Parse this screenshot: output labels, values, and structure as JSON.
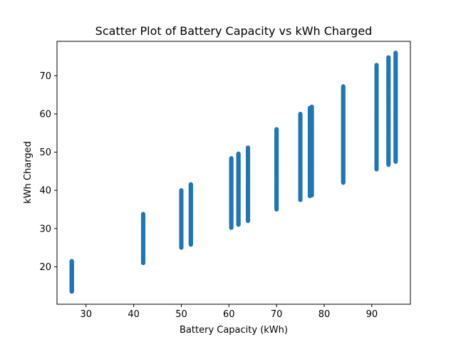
{
  "chart_data": {
    "type": "scatter",
    "title": "Scatter Plot of Battery Capacity vs kWh Charged",
    "xlabel": "Battery Capacity (kWh)",
    "ylabel": "kWh Charged",
    "xlim": [
      23.9,
      98.1
    ],
    "ylim": [
      10.2,
      79.0
    ],
    "xticks": [
      30,
      40,
      50,
      60,
      70,
      80,
      90
    ],
    "yticks": [
      20,
      30,
      40,
      50,
      60,
      70
    ],
    "grid": false,
    "legend": "none",
    "marker_color": "#1f77b4",
    "marker_density": 200,
    "point_groups": [
      {
        "x": 27.0,
        "y_min": 13.5,
        "y_max": 21.5
      },
      {
        "x": 42.0,
        "y_min": 21.0,
        "y_max": 33.8
      },
      {
        "x": 50.0,
        "y_min": 25.0,
        "y_max": 40.0
      },
      {
        "x": 52.0,
        "y_min": 25.8,
        "y_max": 41.6
      },
      {
        "x": 60.5,
        "y_min": 30.2,
        "y_max": 48.4
      },
      {
        "x": 62.0,
        "y_min": 31.0,
        "y_max": 49.6
      },
      {
        "x": 64.0,
        "y_min": 32.0,
        "y_max": 51.2
      },
      {
        "x": 70.0,
        "y_min": 35.0,
        "y_max": 56.0
      },
      {
        "x": 75.0,
        "y_min": 37.5,
        "y_max": 60.0
      },
      {
        "x": 77.0,
        "y_min": 38.5,
        "y_max": 61.6
      },
      {
        "x": 77.4,
        "y_min": 38.7,
        "y_max": 61.9
      },
      {
        "x": 84.0,
        "y_min": 42.0,
        "y_max": 67.2
      },
      {
        "x": 91.0,
        "y_min": 45.5,
        "y_max": 72.8
      },
      {
        "x": 93.5,
        "y_min": 46.7,
        "y_max": 74.8
      },
      {
        "x": 95.0,
        "y_min": 47.5,
        "y_max": 76.0
      }
    ]
  }
}
